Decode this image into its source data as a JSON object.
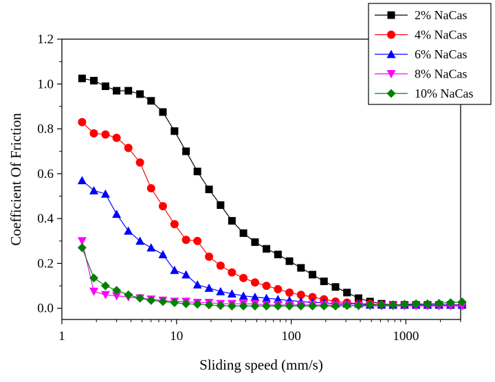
{
  "chart_data": {
    "type": "line",
    "title": "",
    "xlabel": "Sliding speed (mm/s)",
    "ylabel": "Coefficient Of Friction",
    "xscale": "log",
    "xlim": [
      1,
      3000
    ],
    "ylim": [
      -0.05,
      1.2
    ],
    "xticks": [
      1,
      10,
      100,
      1000
    ],
    "xtick_labels": [
      "1",
      "10",
      "100",
      "1000"
    ],
    "yticks": [
      0.0,
      0.2,
      0.4,
      0.6,
      0.8,
      1.0,
      1.2
    ],
    "ytick_labels": [
      "0.0",
      "0.2",
      "0.4",
      "0.6",
      "0.8",
      "1.0",
      "1.2"
    ],
    "legend_position": "top-right",
    "grid": false,
    "series": [
      {
        "name": "2% NaCas",
        "color": "#000000",
        "marker": "square",
        "x": [
          1.5,
          1.9,
          2.4,
          3.0,
          3.8,
          4.8,
          6.0,
          7.6,
          9.6,
          12.1,
          15.2,
          19.2,
          24.2,
          30.4,
          38.3,
          48.3,
          60.8,
          76.6,
          96.5,
          121.6,
          153.2,
          193.0,
          243.2,
          306.4,
          386.1,
          486.4,
          612.8,
          772.1,
          972.8,
          1225.6,
          1544.2,
          1945.6,
          2451.3,
          3088.4
        ],
        "y": [
          1.025,
          1.015,
          0.99,
          0.97,
          0.97,
          0.955,
          0.925,
          0.875,
          0.79,
          0.7,
          0.61,
          0.53,
          0.46,
          0.39,
          0.335,
          0.295,
          0.265,
          0.24,
          0.21,
          0.18,
          0.15,
          0.12,
          0.095,
          0.07,
          0.045,
          0.03,
          0.02,
          0.015,
          0.015,
          0.015,
          0.015,
          0.015,
          0.015,
          0.015
        ]
      },
      {
        "name": "4% NaCas",
        "color": "#ff0000",
        "marker": "circle",
        "x": [
          1.5,
          1.9,
          2.4,
          3.0,
          3.8,
          4.8,
          6.0,
          7.6,
          9.6,
          12.1,
          15.2,
          19.2,
          24.2,
          30.4,
          38.3,
          48.3,
          60.8,
          76.6,
          96.5,
          121.6,
          153.2,
          193.0,
          243.2,
          306.4,
          386.1,
          486.4,
          612.8,
          772.1,
          972.8,
          1225.6,
          1544.2,
          1945.6,
          2451.3,
          3088.4
        ],
        "y": [
          0.83,
          0.78,
          0.775,
          0.76,
          0.715,
          0.65,
          0.535,
          0.455,
          0.375,
          0.305,
          0.3,
          0.23,
          0.19,
          0.16,
          0.135,
          0.115,
          0.1,
          0.085,
          0.07,
          0.06,
          0.05,
          0.04,
          0.03,
          0.025,
          0.02,
          0.02,
          0.015,
          0.015,
          0.015,
          0.015,
          0.015,
          0.015,
          0.015,
          0.015
        ]
      },
      {
        "name": "6% NaCas",
        "color": "#0000ff",
        "marker": "triangle-up",
        "x": [
          1.5,
          1.9,
          2.4,
          3.0,
          3.8,
          4.8,
          6.0,
          7.6,
          9.6,
          12.1,
          15.2,
          19.2,
          24.2,
          30.4,
          38.3,
          48.3,
          60.8,
          76.6,
          96.5,
          121.6,
          153.2,
          193.0,
          243.2,
          306.4,
          386.1,
          486.4,
          612.8,
          772.1,
          972.8,
          1225.6,
          1544.2,
          1945.6,
          2451.3,
          3088.4
        ],
        "y": [
          0.57,
          0.525,
          0.51,
          0.42,
          0.345,
          0.3,
          0.27,
          0.24,
          0.17,
          0.15,
          0.105,
          0.09,
          0.075,
          0.065,
          0.055,
          0.05,
          0.045,
          0.04,
          0.035,
          0.03,
          0.025,
          0.025,
          0.02,
          0.02,
          0.02,
          0.015,
          0.015,
          0.015,
          0.015,
          0.015,
          0.015,
          0.015,
          0.015,
          0.015
        ]
      },
      {
        "name": "8% NaCas",
        "color": "#ff00ff",
        "marker": "triangle-down",
        "x": [
          1.5,
          1.9,
          2.4,
          3.0,
          3.8,
          4.8,
          6.0,
          7.6,
          9.6,
          12.1,
          15.2,
          19.2,
          24.2,
          30.4,
          38.3,
          48.3,
          60.8,
          76.6,
          96.5,
          121.6,
          153.2,
          193.0,
          243.2,
          306.4,
          386.1,
          486.4,
          612.8,
          772.1,
          972.8,
          1225.6,
          1544.2,
          1945.6,
          2451.3,
          3088.4
        ],
        "y": [
          0.3,
          0.075,
          0.06,
          0.055,
          0.05,
          0.045,
          0.04,
          0.035,
          0.03,
          0.03,
          0.025,
          0.025,
          0.02,
          0.02,
          0.02,
          0.02,
          0.015,
          0.015,
          0.015,
          0.015,
          0.015,
          0.015,
          0.015,
          0.015,
          0.01,
          0.01,
          0.01,
          0.01,
          0.01,
          0.01,
          0.01,
          0.01,
          0.01,
          0.01
        ]
      },
      {
        "name": "10% NaCas",
        "color": "#008000",
        "marker": "diamond",
        "x": [
          1.5,
          1.9,
          2.4,
          3.0,
          3.8,
          4.8,
          6.0,
          7.6,
          9.6,
          12.1,
          15.2,
          19.2,
          24.2,
          30.4,
          38.3,
          48.3,
          60.8,
          76.6,
          96.5,
          121.6,
          153.2,
          193.0,
          243.2,
          306.4,
          386.1,
          486.4,
          612.8,
          772.1,
          972.8,
          1225.6,
          1544.2,
          1945.6,
          2451.3,
          3088.4
        ],
        "y": [
          0.27,
          0.135,
          0.1,
          0.08,
          0.06,
          0.045,
          0.035,
          0.03,
          0.025,
          0.02,
          0.018,
          0.015,
          0.012,
          0.01,
          0.01,
          0.01,
          0.01,
          0.01,
          0.01,
          0.01,
          0.01,
          0.01,
          0.01,
          0.012,
          0.012,
          0.015,
          0.015,
          0.015,
          0.018,
          0.02,
          0.02,
          0.022,
          0.025,
          0.028
        ]
      }
    ]
  }
}
